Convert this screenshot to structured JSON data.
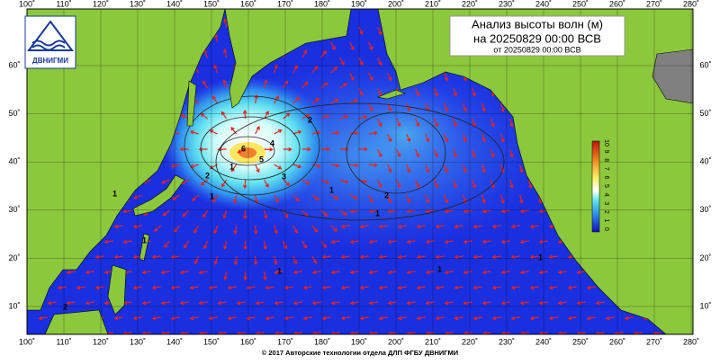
{
  "header": {
    "title": "Анализ высоты волн (м)",
    "valid": "на 20250829 00:00 ВСВ",
    "issued": "от 20250829 00:00 ВСВ"
  },
  "logo": {
    "text": "ДВНИГМИ"
  },
  "lon_labels": [
    "100˚",
    "110˚",
    "120˚",
    "130˚",
    "140˚",
    "150˚",
    "160˚",
    "170˚",
    "180˚",
    "190˚",
    "200˚",
    "210˚",
    "220˚",
    "230˚",
    "240˚",
    "250˚",
    "260˚",
    "270˚",
    "280˚"
  ],
  "lat_labels": [
    "60˚",
    "50˚",
    "40˚",
    "30˚",
    "20˚",
    "10˚"
  ],
  "colorbar": {
    "labels": [
      "0",
      "1",
      "2",
      "3",
      "4",
      "5",
      "6",
      "7",
      "8",
      "9",
      "10"
    ]
  },
  "contour_labels": [
    "1",
    "2",
    "3",
    "4",
    "5",
    "6",
    "2",
    "2",
    "1",
    "1",
    "1",
    "1",
    "1",
    "1",
    "1",
    "1",
    "2"
  ],
  "footer": "© 2017 Авторские технологии отдела ДЛП ФГБУ ДВНИГМИ"
}
